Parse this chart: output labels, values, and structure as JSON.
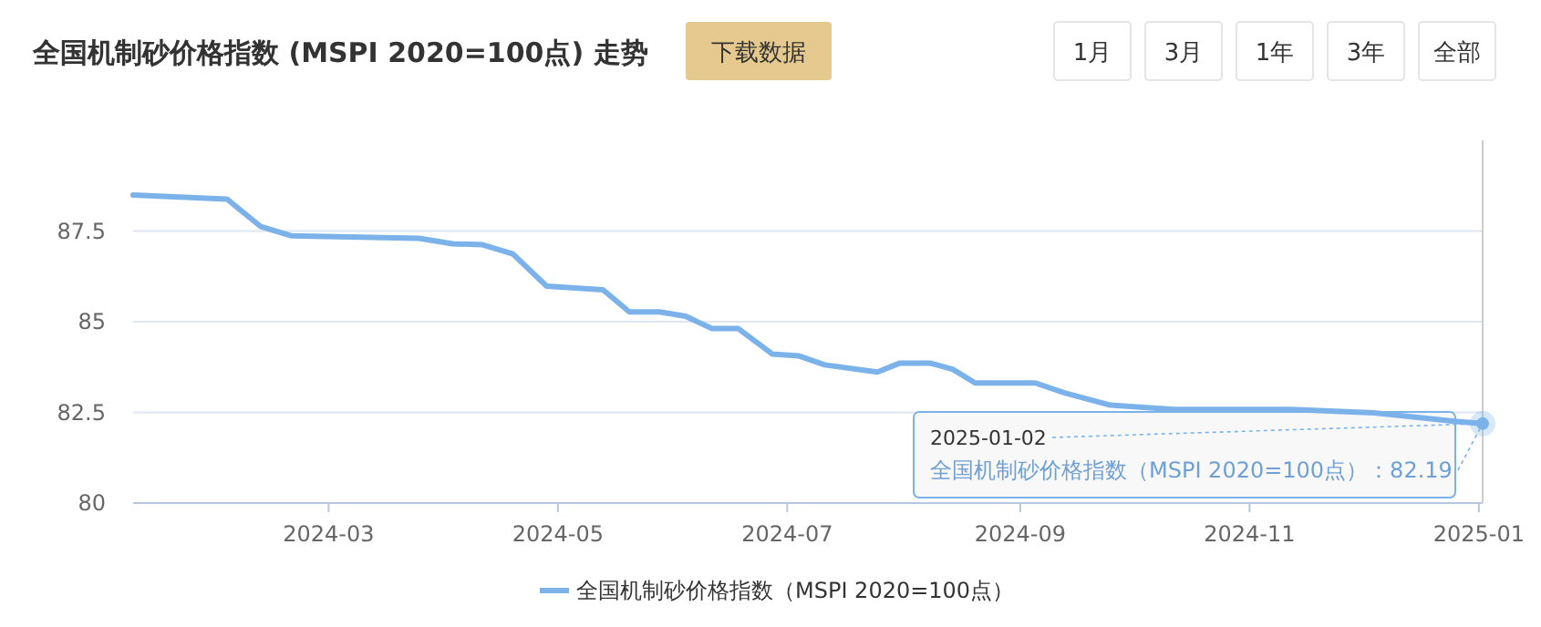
{
  "chart_data": {
    "type": "line",
    "title": "全国机制砂价格指数 (MSPI 2020=100点) 走势",
    "x": [
      "2024-01-09",
      "2024-02-03",
      "2024-02-12",
      "2024-02-20",
      "2024-03-25",
      "2024-04-03",
      "2024-04-11",
      "2024-04-19",
      "2024-04-28",
      "2024-05-13",
      "2024-05-20",
      "2024-05-28",
      "2024-06-04",
      "2024-06-11",
      "2024-06-18",
      "2024-06-27",
      "2024-07-04",
      "2024-07-11",
      "2024-07-25",
      "2024-07-31",
      "2024-08-08",
      "2024-08-14",
      "2024-08-20",
      "2024-09-05",
      "2024-09-13",
      "2024-09-25",
      "2024-10-12",
      "2024-11-12",
      "2024-12-04",
      "2024-12-26",
      "2025-01-02"
    ],
    "series": [
      {
        "name": "全国机制砂价格指数（MSPI 2020=100点）",
        "color": "#7cb2ea",
        "values": [
          88.49,
          88.38,
          87.62,
          87.37,
          87.3,
          87.15,
          87.12,
          86.87,
          85.98,
          85.88,
          85.27,
          85.27,
          85.15,
          84.81,
          84.81,
          84.11,
          84.06,
          83.81,
          83.61,
          83.86,
          83.86,
          83.69,
          83.31,
          83.31,
          83.03,
          82.7,
          82.58,
          82.58,
          82.49,
          82.25,
          82.19
        ]
      }
    ],
    "xlim": [
      "2024-01-09",
      "2025-01-02"
    ],
    "xticks": [
      {
        "value": "2024-03-01",
        "label": "2024-03"
      },
      {
        "value": "2024-05-01",
        "label": "2024-05"
      },
      {
        "value": "2024-07-01",
        "label": "2024-07"
      },
      {
        "value": "2024-09-01",
        "label": "2024-09"
      },
      {
        "value": "2024-11-01",
        "label": "2024-11"
      },
      {
        "value": "2025-01-01",
        "label": "2025-01"
      }
    ],
    "ylim": [
      80,
      90
    ],
    "yticks": [
      80,
      82.5,
      85,
      87.5
    ],
    "grid": "y",
    "legend": "bottom",
    "marker": "none",
    "line_style": "solid",
    "annotations": [
      "下载数据",
      "1月",
      "3月",
      "1年",
      "3年",
      "全部",
      {
        "text": "2025-01-02",
        "x": "2025-01-02",
        "y": 82.19
      },
      {
        "text": "全国机制砂价格指数（MSPI 2020=100点）：82.19",
        "x": "2025-01-02",
        "y": 82.19
      }
    ]
  }
}
